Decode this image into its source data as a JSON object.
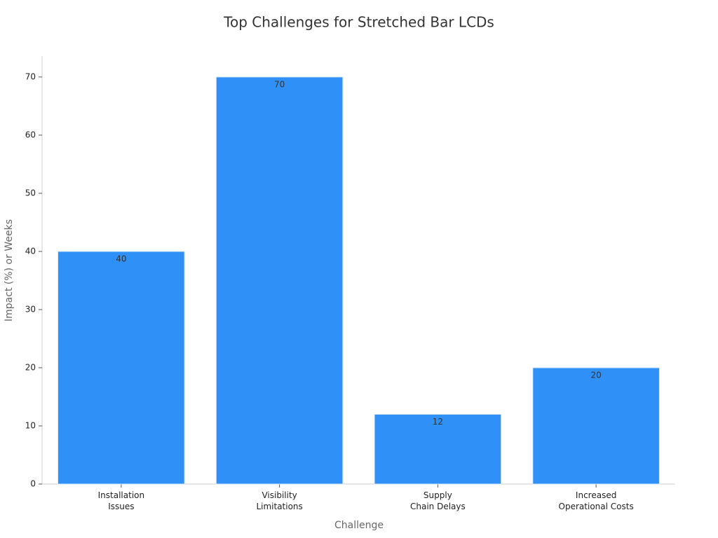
{
  "chart_data": {
    "type": "bar",
    "title": "Top Challenges for Stretched Bar LCDs",
    "x_label": "Challenge",
    "y_label": "Impact (%) or Weeks",
    "categories": [
      "Installation\nIssues",
      "Visibility\nLimitations",
      "Supply\nChain Delays",
      "Increased\nOperational Costs"
    ],
    "values": [
      40,
      70,
      12,
      20
    ],
    "color": "#2f91f7",
    "ylim": [
      0,
      73.6
    ],
    "yticks": [
      0,
      10,
      20,
      30,
      40,
      50,
      60,
      70
    ],
    "grid": false
  }
}
